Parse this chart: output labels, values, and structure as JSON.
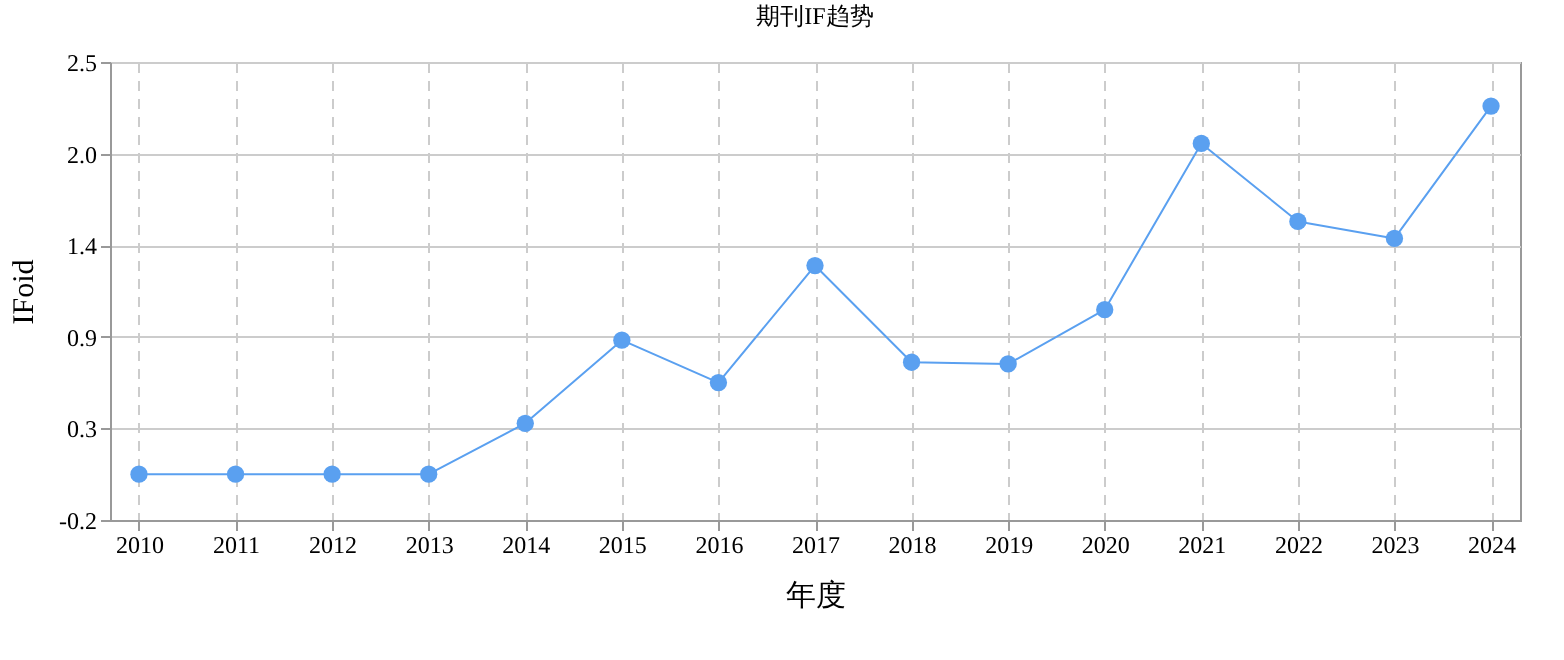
{
  "chart_data": {
    "type": "line",
    "title": "期刊IF趋势",
    "xlabel": "年度",
    "ylabel": "IFoid",
    "categories": [
      "2010",
      "2011",
      "2012",
      "2013",
      "2014",
      "2015",
      "2016",
      "2017",
      "2018",
      "2019",
      "2020",
      "2021",
      "2022",
      "2023",
      "2024"
    ],
    "series": [
      {
        "color": "#5aa0f0",
        "values": [
          0.07,
          0.07,
          0.07,
          0.07,
          0.37,
          0.86,
          0.61,
          1.3,
          0.73,
          0.72,
          1.04,
          2.02,
          1.56,
          1.46,
          2.24
        ]
      }
    ],
    "ylim": [
      -0.2,
      2.5
    ],
    "yticks": [
      {
        "value": -0.2,
        "label": "-0.2"
      },
      {
        "value": 0.34,
        "label": "0.3"
      },
      {
        "value": 0.88,
        "label": "0.9"
      },
      {
        "value": 1.42,
        "label": "1.4"
      },
      {
        "value": 1.96,
        "label": "2.0"
      },
      {
        "value": 2.5,
        "label": "2.5"
      }
    ],
    "grid": true,
    "marker": "circle",
    "line_style": "solid"
  }
}
